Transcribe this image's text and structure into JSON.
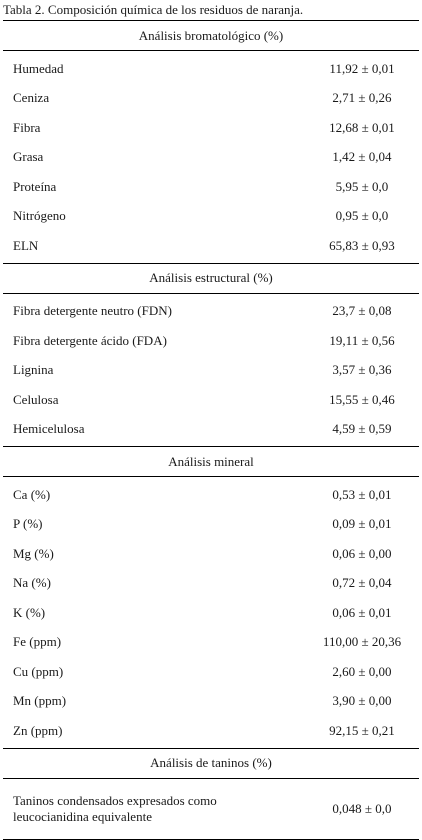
{
  "caption": "Tabla 2. Composición química de los residuos de naranja.",
  "sections": [
    {
      "title": "Análisis bromatológico (%)",
      "rows": [
        {
          "label": "Humedad",
          "value": "11,92 ± 0,01"
        },
        {
          "label": "Ceniza",
          "value": "2,71 ± 0,26"
        },
        {
          "label": "Fibra",
          "value": "12,68 ± 0,01"
        },
        {
          "label": "Grasa",
          "value": "1,42 ± 0,04"
        },
        {
          "label": "Proteína",
          "value": "5,95 ± 0,0"
        },
        {
          "label": "Nitrógeno",
          "value": "0,95 ± 0,0"
        },
        {
          "label": "ELN",
          "value": "65,83 ± 0,93"
        }
      ]
    },
    {
      "title": "Análisis estructural (%)",
      "rows": [
        {
          "label": "Fibra detergente neutro (FDN)",
          "value": "23,7 ± 0,08"
        },
        {
          "label": "Fibra detergente ácido (FDA)",
          "value": "19,11 ± 0,56"
        },
        {
          "label": "Lignina",
          "value": "3,57 ± 0,36"
        },
        {
          "label": "Celulosa",
          "value": "15,55 ± 0,46"
        },
        {
          "label": "Hemicelulosa",
          "value": "4,59 ± 0,59"
        }
      ]
    },
    {
      "title": "Análisis mineral",
      "rows": [
        {
          "label": "Ca (%)",
          "value": "0,53 ± 0,01"
        },
        {
          "label": "P (%)",
          "value": "0,09 ± 0,01"
        },
        {
          "label": "Mg (%)",
          "value": "0,06 ± 0,00"
        },
        {
          "label": "Na (%)",
          "value": "0,72 ± 0,04"
        },
        {
          "label": "K (%)",
          "value": "0,06 ± 0,01"
        },
        {
          "label": "Fe (ppm)",
          "value": "110,00 ± 20,36"
        },
        {
          "label": "Cu (ppm)",
          "value": "2,60 ± 0,00"
        },
        {
          "label": "Mn (ppm)",
          "value": "3,90 ± 0,00"
        },
        {
          "label": "Zn (ppm)",
          "value": "92,15 ± 0,21"
        }
      ]
    },
    {
      "title": "Análisis de taninos (%)",
      "rows": [
        {
          "label": "Taninos condensados expresados como leucocianidina equivalente",
          "value": "0,048 ± 0,0"
        }
      ]
    }
  ]
}
